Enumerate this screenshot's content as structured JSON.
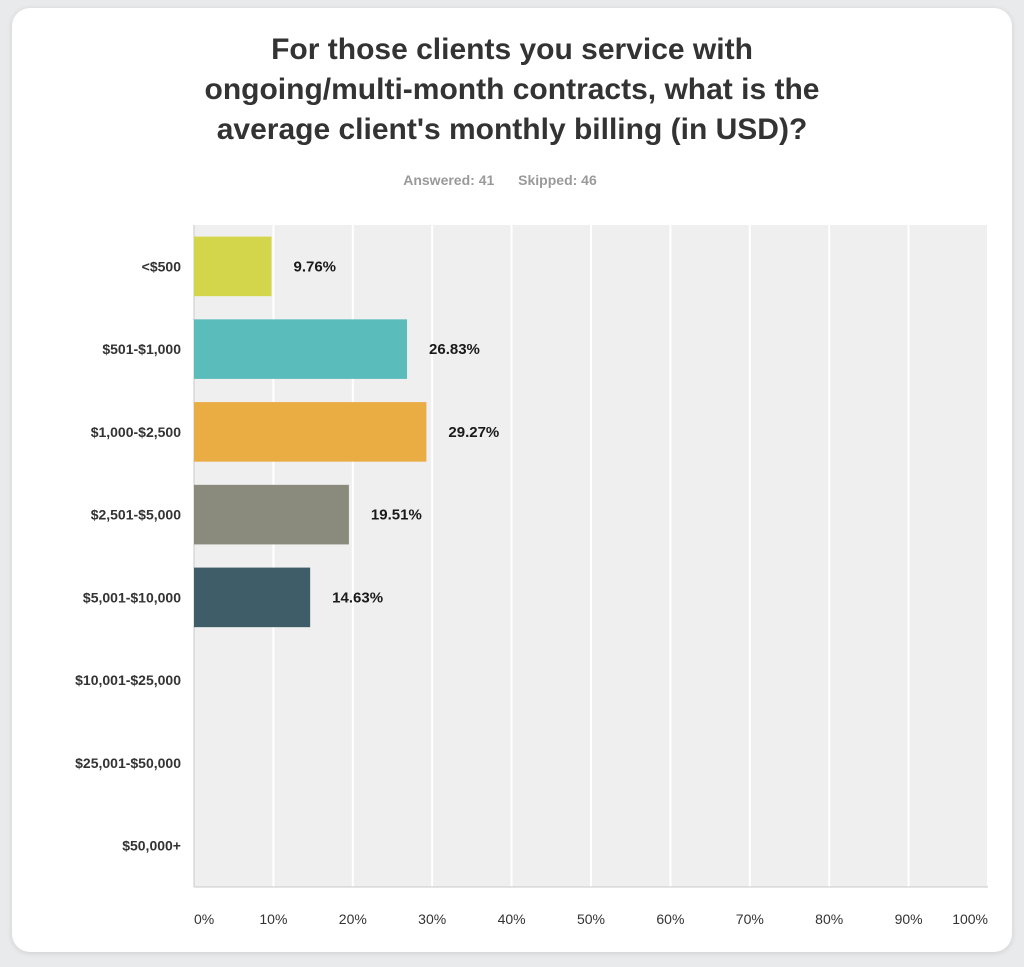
{
  "chart_data": {
    "type": "bar",
    "orientation": "horizontal",
    "title_lines": [
      "For those clients you service with",
      "ongoing/multi-month contracts, what is the",
      "average client's monthly billing (in USD)?"
    ],
    "answered_label": "Answered: 41",
    "skipped_label": "Skipped: 46",
    "categories": [
      "<$500",
      "$501-$1,000",
      "$1,000-$2,500",
      "$2,501-$5,000",
      "$5,001-$10,000",
      "$10,001-$25,000",
      "$25,001-$50,000",
      "$50,000+"
    ],
    "values": [
      9.76,
      26.83,
      29.27,
      19.51,
      14.63,
      0,
      0,
      0
    ],
    "value_labels": [
      "9.76%",
      "26.83%",
      "29.27%",
      "19.51%",
      "14.63%",
      "",
      "",
      ""
    ],
    "colors": [
      "#d3d64b",
      "#5bbcbc",
      "#eaad44",
      "#8a8b7d",
      "#3e5d68",
      "#d3d64b",
      "#5bbcbc",
      "#eaad44"
    ],
    "x_ticks": [
      "0%",
      "10%",
      "20%",
      "30%",
      "40%",
      "50%",
      "60%",
      "70%",
      "80%",
      "90%",
      "100%"
    ],
    "xlim": [
      0,
      100
    ],
    "grid": true
  }
}
